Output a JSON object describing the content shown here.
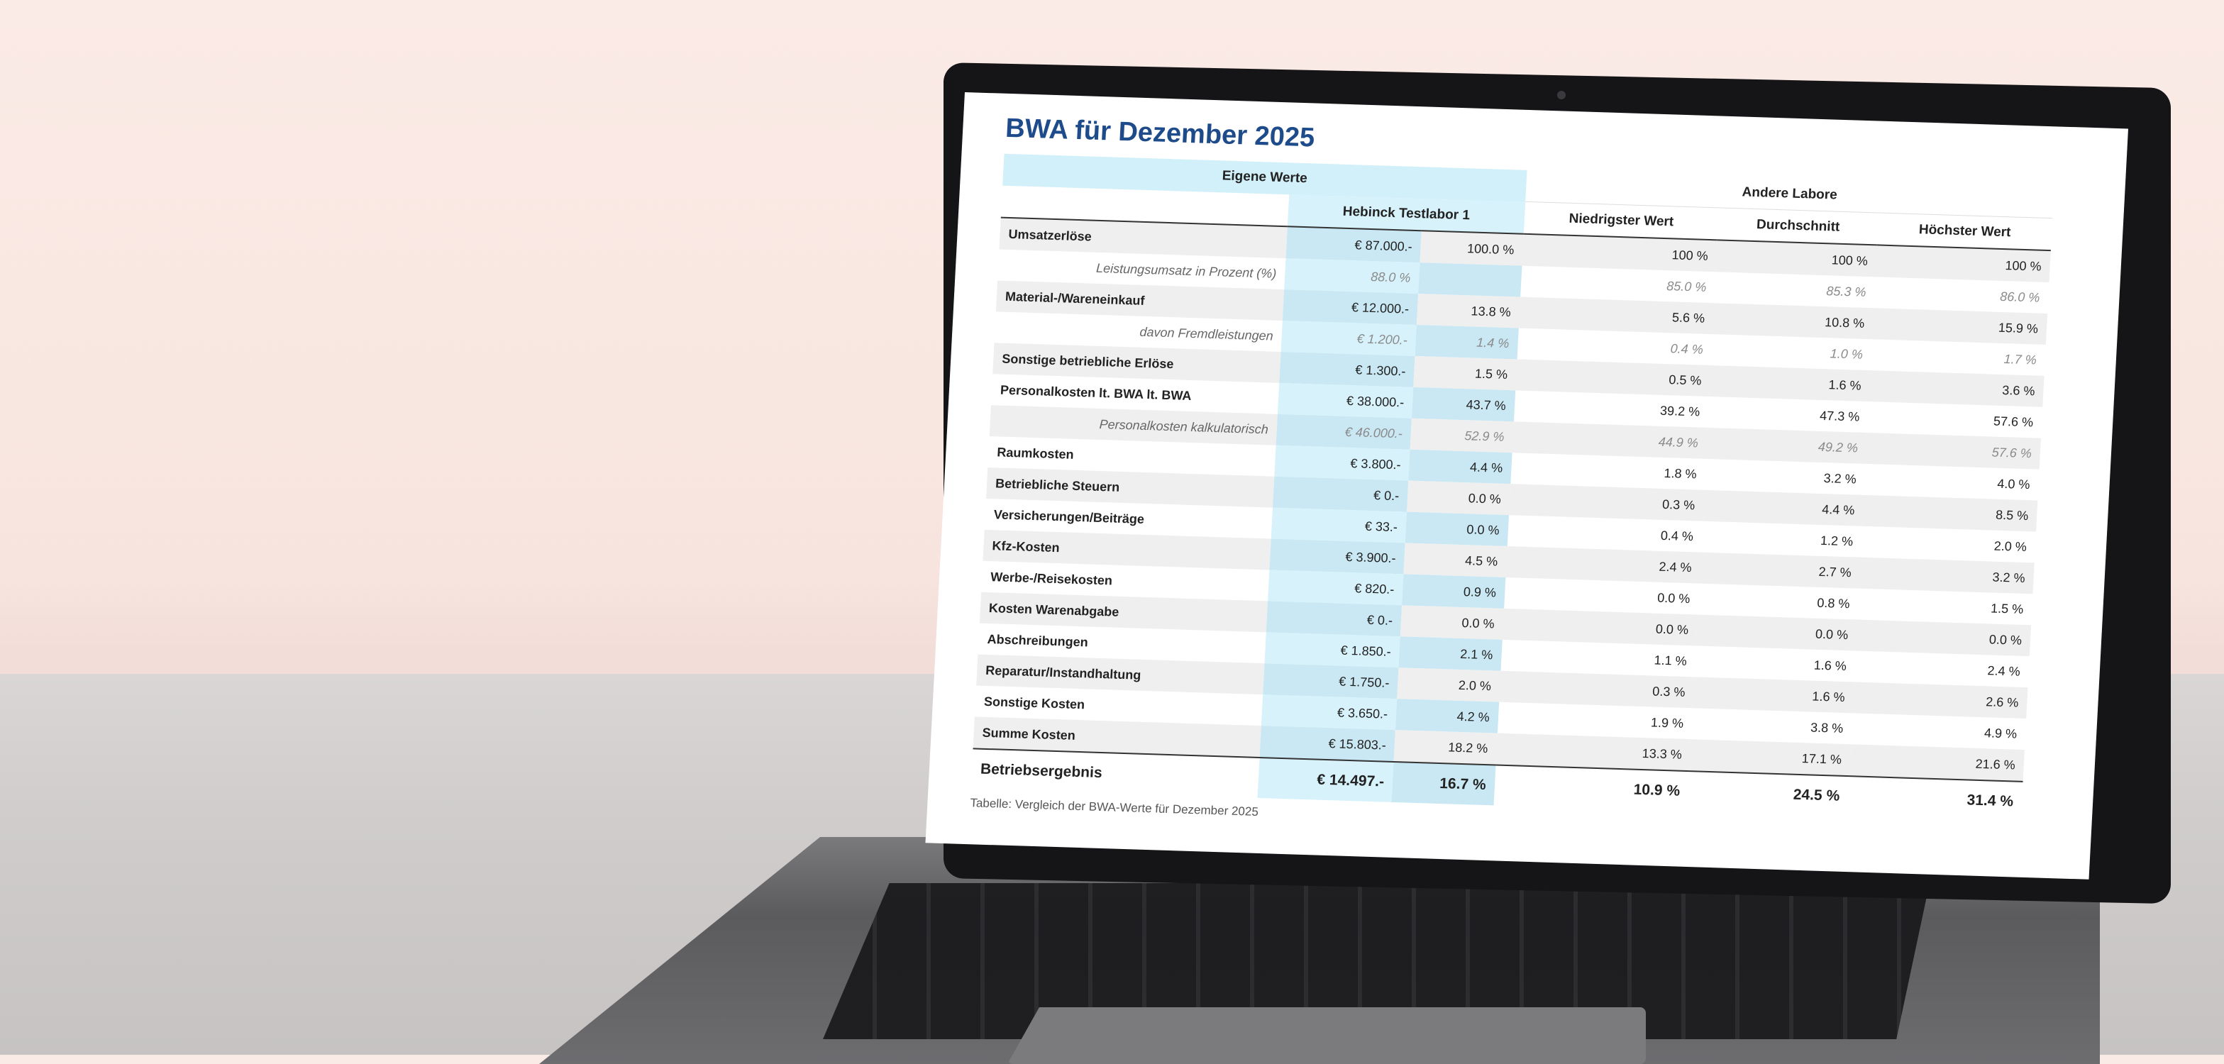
{
  "title": "BWA für Dezember 2025",
  "groups": {
    "own": "Eigene Werte",
    "others": "Andere Labore"
  },
  "columns": {
    "lab": "Hebinck Testlabor 1",
    "min": "Niedrigster Wert",
    "avg": "Durchschnitt",
    "max": "Höchster Wert"
  },
  "rows": [
    {
      "label": "Umsatzerlöse",
      "sub": false,
      "eur": "€ 87.000.-",
      "pct": "100.0 %",
      "min": "100 %",
      "avg": "100 %",
      "max": "100 %"
    },
    {
      "label": "Leistungsumsatz in Prozent (%)",
      "sub": true,
      "eur": "88.0 %",
      "pct": "",
      "min": "85.0 %",
      "avg": "85.3 %",
      "max": "86.0 %"
    },
    {
      "label": "Material-/Wareneinkauf",
      "sub": false,
      "eur": "€ 12.000.-",
      "pct": "13.8 %",
      "min": "5.6 %",
      "avg": "10.8 %",
      "max": "15.9 %"
    },
    {
      "label": "davon Fremdleistungen",
      "sub": true,
      "eur": "€ 1.200.-",
      "pct": "1.4 %",
      "min": "0.4 %",
      "avg": "1.0 %",
      "max": "1.7 %"
    },
    {
      "label": "Sonstige betriebliche Erlöse",
      "sub": false,
      "eur": "€ 1.300.-",
      "pct": "1.5 %",
      "min": "0.5 %",
      "avg": "1.6 %",
      "max": "3.6 %"
    },
    {
      "label": "Personalkosten lt. BWA lt. BWA",
      "sub": false,
      "eur": "€ 38.000.-",
      "pct": "43.7 %",
      "min": "39.2 %",
      "avg": "47.3 %",
      "max": "57.6 %"
    },
    {
      "label": "Personalkosten kalkulatorisch",
      "sub": true,
      "eur": "€ 46.000.-",
      "pct": "52.9 %",
      "min": "44.9 %",
      "avg": "49.2 %",
      "max": "57.6 %"
    },
    {
      "label": "Raumkosten",
      "sub": false,
      "eur": "€ 3.800.-",
      "pct": "4.4 %",
      "min": "1.8 %",
      "avg": "3.2 %",
      "max": "4.0 %"
    },
    {
      "label": "Betriebliche Steuern",
      "sub": false,
      "eur": "€ 0.-",
      "pct": "0.0 %",
      "min": "0.3 %",
      "avg": "4.4 %",
      "max": "8.5 %"
    },
    {
      "label": "Versicherungen/Beiträge",
      "sub": false,
      "eur": "€ 33.-",
      "pct": "0.0 %",
      "min": "0.4 %",
      "avg": "1.2 %",
      "max": "2.0 %"
    },
    {
      "label": "Kfz-Kosten",
      "sub": false,
      "eur": "€ 3.900.-",
      "pct": "4.5 %",
      "min": "2.4 %",
      "avg": "2.7 %",
      "max": "3.2 %"
    },
    {
      "label": "Werbe-/Reisekosten",
      "sub": false,
      "eur": "€ 820.-",
      "pct": "0.9 %",
      "min": "0.0 %",
      "avg": "0.8 %",
      "max": "1.5 %"
    },
    {
      "label": "Kosten Warenabgabe",
      "sub": false,
      "eur": "€ 0.-",
      "pct": "0.0 %",
      "min": "0.0 %",
      "avg": "0.0 %",
      "max": "0.0 %"
    },
    {
      "label": "Abschreibungen",
      "sub": false,
      "eur": "€ 1.850.-",
      "pct": "2.1 %",
      "min": "1.1 %",
      "avg": "1.6 %",
      "max": "2.4 %"
    },
    {
      "label": "Reparatur/Instandhaltung",
      "sub": false,
      "eur": "€ 1.750.-",
      "pct": "2.0 %",
      "min": "0.3 %",
      "avg": "1.6 %",
      "max": "2.6 %"
    },
    {
      "label": "Sonstige Kosten",
      "sub": false,
      "eur": "€ 3.650.-",
      "pct": "4.2 %",
      "min": "1.9 %",
      "avg": "3.8 %",
      "max": "4.9 %"
    },
    {
      "label": "Summe Kosten",
      "sub": false,
      "eur": "€ 15.803.-",
      "pct": "18.2 %",
      "min": "13.3 %",
      "avg": "17.1 %",
      "max": "21.6 %"
    }
  ],
  "total": {
    "label": "Betriebsergebnis",
    "eur": "€ 14.497.-",
    "pct": "16.7 %",
    "min": "10.9 %",
    "avg": "24.5 %",
    "max": "31.4 %"
  },
  "caption": "Tabelle: Vergleich der BWA-Werte für Dezember 2025"
}
